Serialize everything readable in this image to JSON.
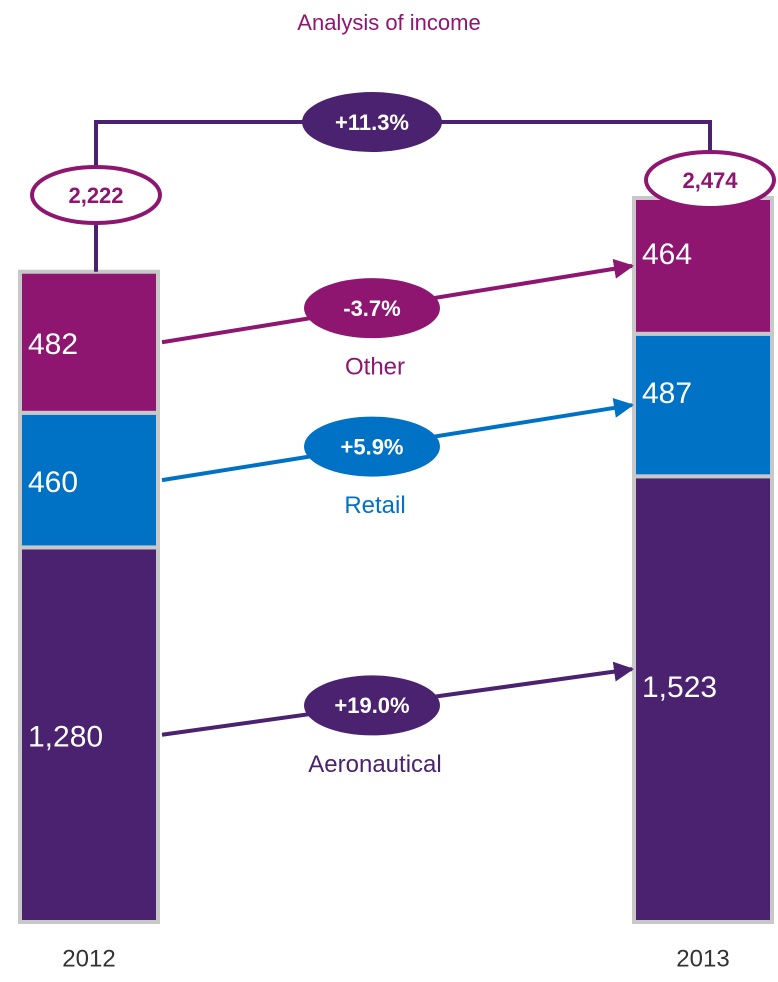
{
  "chart_data": {
    "type": "bar",
    "stacked": true,
    "title": "Analysis of income",
    "categories": [
      "2012",
      "2013"
    ],
    "series": [
      {
        "name": "Aeronautical",
        "color": "#4a2270",
        "values": [
          1280,
          1523
        ],
        "value_labels": [
          "1,280",
          "1,523"
        ],
        "change": "+19.0%"
      },
      {
        "name": "Retail",
        "color": "#0072c6",
        "values": [
          460,
          487
        ],
        "change": "+5.9%"
      },
      {
        "name": "Other",
        "color": "#8e1670",
        "values": [
          482,
          464
        ],
        "change": "-3.7%"
      }
    ],
    "totals": [
      2222,
      2474
    ],
    "total_labels": [
      "2,222",
      "2,474"
    ],
    "total_change": "+11.3%",
    "total_color": "#4a2270",
    "border_color": "#c8c8c8"
  }
}
